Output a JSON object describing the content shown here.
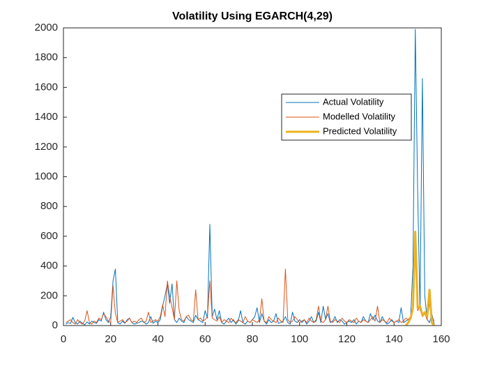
{
  "chart_data": {
    "type": "line",
    "title": "Volatility Using EGARCH(4,29)",
    "xlim": [
      0,
      160
    ],
    "xticks": [
      0,
      20,
      40,
      60,
      80,
      100,
      120,
      140,
      160
    ],
    "ylim": [
      0,
      2000
    ],
    "yticks": [
      0,
      200,
      400,
      600,
      800,
      1000,
      1200,
      1400,
      1600,
      1800,
      2000
    ],
    "grid": false,
    "legend": "upper right",
    "series": [
      {
        "name": "Actual Volatility",
        "color": "#0072bd",
        "width": 1,
        "x": [
          1,
          2,
          3,
          4,
          5,
          6,
          7,
          8,
          9,
          10,
          11,
          12,
          13,
          14,
          15,
          16,
          17,
          18,
          19,
          20,
          21,
          22,
          23,
          24,
          25,
          26,
          27,
          28,
          29,
          30,
          31,
          32,
          33,
          34,
          35,
          36,
          37,
          38,
          39,
          40,
          41,
          42,
          43,
          44,
          45,
          46,
          47,
          48,
          49,
          50,
          51,
          52,
          53,
          54,
          55,
          56,
          57,
          58,
          59,
          60,
          61,
          62,
          63,
          64,
          65,
          66,
          67,
          68,
          69,
          70,
          71,
          72,
          73,
          74,
          75,
          76,
          77,
          78,
          79,
          80,
          81,
          82,
          83,
          84,
          85,
          86,
          87,
          88,
          89,
          90,
          91,
          92,
          93,
          94,
          95,
          96,
          97,
          98,
          99,
          100,
          101,
          102,
          103,
          104,
          105,
          106,
          107,
          108,
          109,
          110,
          111,
          112,
          113,
          114,
          115,
          116,
          117,
          118,
          119,
          120,
          121,
          122,
          123,
          124,
          125,
          126,
          127,
          128,
          129,
          130,
          131,
          132,
          133,
          134,
          135,
          136,
          137,
          138,
          139,
          140,
          141,
          142,
          143,
          144,
          145,
          146,
          147,
          148,
          149,
          150,
          151,
          152,
          153,
          154,
          155,
          156,
          157
        ],
        "values": [
          10,
          20,
          15,
          55,
          20,
          10,
          30,
          15,
          5,
          25,
          10,
          30,
          20,
          15,
          40,
          30,
          90,
          40,
          20,
          60,
          300,
          380,
          20,
          10,
          30,
          15,
          40,
          50,
          20,
          10,
          15,
          20,
          30,
          25,
          10,
          20,
          60,
          15,
          30,
          20,
          40,
          130,
          200,
          280,
          150,
          280,
          40,
          20,
          50,
          30,
          20,
          60,
          40,
          30,
          20,
          70,
          40,
          30,
          20,
          100,
          50,
          680,
          60,
          110,
          40,
          100,
          20,
          10,
          30,
          50,
          20,
          40,
          10,
          30,
          100,
          20,
          10,
          30,
          20,
          40,
          60,
          120,
          20,
          80,
          30,
          10,
          40,
          20,
          30,
          80,
          15,
          20,
          30,
          60,
          20,
          10,
          90,
          30,
          20,
          40,
          20,
          40,
          10,
          30,
          60,
          20,
          30,
          90,
          20,
          130,
          40,
          80,
          20,
          30,
          60,
          20,
          40,
          30,
          10,
          20,
          30,
          20,
          40,
          10,
          30,
          20,
          60,
          30,
          20,
          80,
          40,
          70,
          30,
          20,
          60,
          30,
          10,
          20,
          40,
          20,
          30,
          20,
          120,
          20,
          30,
          40,
          60,
          400,
          1990,
          900,
          100,
          1660,
          200,
          40,
          20,
          80,
          10
        ]
      },
      {
        "name": "Modelled Volatility",
        "color": "#d95319",
        "width": 1,
        "x": [
          1,
          2,
          3,
          4,
          5,
          6,
          7,
          8,
          9,
          10,
          11,
          12,
          13,
          14,
          15,
          16,
          17,
          18,
          19,
          20,
          21,
          22,
          23,
          24,
          25,
          26,
          27,
          28,
          29,
          30,
          31,
          32,
          33,
          34,
          35,
          36,
          37,
          38,
          39,
          40,
          41,
          42,
          43,
          44,
          45,
          46,
          47,
          48,
          49,
          50,
          51,
          52,
          53,
          54,
          55,
          56,
          57,
          58,
          59,
          60,
          61,
          62,
          63,
          64,
          65,
          66,
          67,
          68,
          69,
          70,
          71,
          72,
          73,
          74,
          75,
          76,
          77,
          78,
          79,
          80,
          81,
          82,
          83,
          84,
          85,
          86,
          87,
          88,
          89,
          90,
          91,
          92,
          93,
          94,
          95,
          96,
          97,
          98,
          99,
          100,
          101,
          102,
          103,
          104,
          105,
          106,
          107,
          108,
          109,
          110,
          111,
          112,
          113,
          114,
          115,
          116,
          117,
          118,
          119,
          120,
          121,
          122,
          123,
          124,
          125,
          126,
          127,
          128,
          129,
          130,
          131,
          132,
          133,
          134,
          135,
          136,
          137,
          138,
          139,
          140,
          141,
          142,
          143,
          144,
          145,
          146,
          147,
          148,
          149,
          150,
          151,
          152,
          153,
          154,
          155,
          156,
          157
        ],
        "values": [
          20,
          30,
          40,
          20,
          10,
          40,
          20,
          10,
          30,
          100,
          20,
          10,
          30,
          20,
          50,
          40,
          80,
          60,
          30,
          20,
          270,
          80,
          20,
          30,
          40,
          20,
          30,
          50,
          20,
          30,
          20,
          40,
          50,
          20,
          30,
          90,
          20,
          30,
          40,
          30,
          60,
          140,
          60,
          300,
          200,
          120,
          40,
          300,
          100,
          40,
          30,
          60,
          70,
          40,
          30,
          240,
          40,
          50,
          30,
          40,
          60,
          300,
          50,
          40,
          30,
          60,
          20,
          40,
          30,
          20,
          50,
          30,
          20,
          40,
          30,
          20,
          60,
          30,
          20,
          40,
          30,
          20,
          40,
          180,
          30,
          20,
          60,
          40,
          30,
          20,
          50,
          30,
          20,
          380,
          40,
          20,
          30,
          60,
          40,
          20,
          30,
          40,
          20,
          50,
          30,
          20,
          40,
          130,
          30,
          20,
          40,
          130,
          30,
          20,
          40,
          30,
          20,
          50,
          30,
          20,
          40,
          30,
          20,
          50,
          30,
          20,
          40,
          30,
          20,
          40,
          60,
          30,
          130,
          20,
          40,
          30,
          20,
          50,
          30,
          20,
          30,
          40,
          20,
          30,
          50,
          40,
          60,
          100,
          600,
          100,
          130,
          60,
          80,
          40,
          150,
          60,
          30
        ]
      },
      {
        "name": "Predicted Volatility",
        "color": "#edb120",
        "width": 3,
        "x": [
          145,
          146,
          147,
          148,
          149,
          150,
          151,
          152,
          153,
          154,
          155,
          156,
          157
        ],
        "values": [
          0,
          20,
          50,
          120,
          630,
          120,
          130,
          70,
          90,
          60,
          240,
          20,
          0
        ]
      }
    ]
  }
}
